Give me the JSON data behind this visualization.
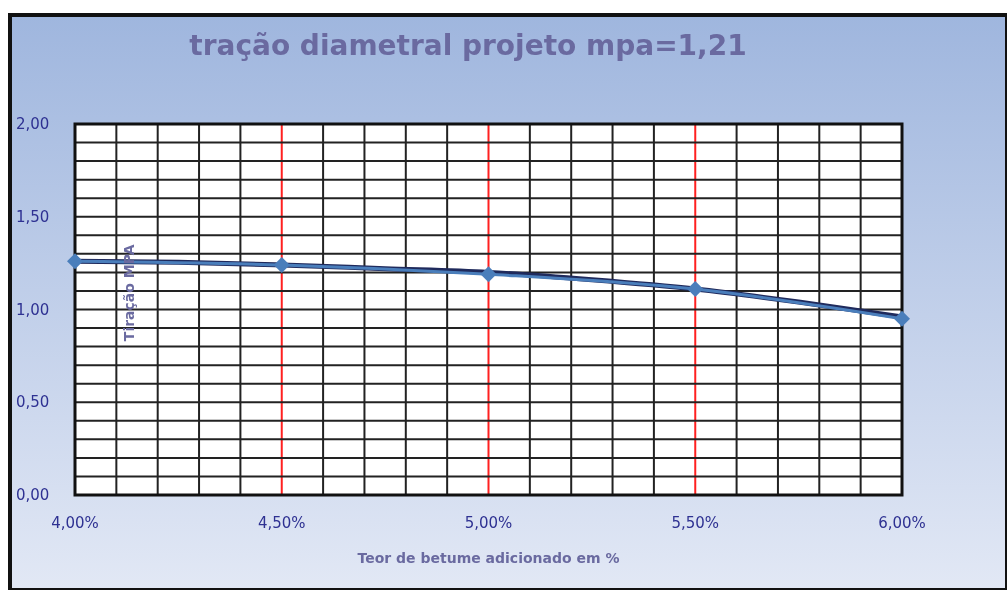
{
  "chart_data": {
    "type": "line",
    "title": "tração diametral projeto  mpa=1,21",
    "xlabel": "Teor de betume adicionado em %",
    "ylabel": "Tiração MPA",
    "xlim": [
      4,
      6
    ],
    "ylim": [
      0,
      2
    ],
    "xticks": [
      {
        "value": 4,
        "label": "4,00%"
      },
      {
        "value": 4.1,
        "label": null
      },
      {
        "value": 4.2,
        "label": null
      },
      {
        "value": 4.3,
        "label": null
      },
      {
        "value": 4.4,
        "label": null
      },
      {
        "value": 4.5,
        "label": "4,50%"
      },
      {
        "value": 4.6,
        "label": null
      },
      {
        "value": 4.7,
        "label": null
      },
      {
        "value": 4.8,
        "label": null
      },
      {
        "value": 4.9,
        "label": null
      },
      {
        "value": 5,
        "label": "5,00%"
      },
      {
        "value": 5.1,
        "label": null
      },
      {
        "value": 5.2,
        "label": null
      },
      {
        "value": 5.3,
        "label": null
      },
      {
        "value": 5.4,
        "label": null
      },
      {
        "value": 5.5,
        "label": "5,50%"
      },
      {
        "value": 5.6,
        "label": null
      },
      {
        "value": 5.7,
        "label": null
      },
      {
        "value": 5.8,
        "label": null
      },
      {
        "value": 5.9,
        "label": null
      },
      {
        "value": 6,
        "label": "6,00%"
      }
    ],
    "yticks": [
      {
        "value": 0,
        "label": "0,00"
      },
      {
        "value": 0.1,
        "label": null
      },
      {
        "value": 0.2,
        "label": null
      },
      {
        "value": 0.3,
        "label": null
      },
      {
        "value": 0.4,
        "label": null
      },
      {
        "value": 0.5,
        "label": "0,50"
      },
      {
        "value": 0.6,
        "label": null
      },
      {
        "value": 0.7,
        "label": null
      },
      {
        "value": 0.8,
        "label": null
      },
      {
        "value": 0.9,
        "label": null
      },
      {
        "value": 1,
        "label": "1,00"
      },
      {
        "value": 1.1,
        "label": null
      },
      {
        "value": 1.2,
        "label": null
      },
      {
        "value": 1.3,
        "label": null
      },
      {
        "value": 1.4,
        "label": null
      },
      {
        "value": 1.5,
        "label": "1,50"
      },
      {
        "value": 1.6,
        "label": null
      },
      {
        "value": 1.7,
        "label": null
      },
      {
        "value": 1.8,
        "label": null
      },
      {
        "value": 1.9,
        "label": null
      },
      {
        "value": 2,
        "label": "2,00"
      }
    ],
    "grid": true,
    "series": [
      {
        "color": "#4a7ebb",
        "marker": "diamond",
        "x": [
          4,
          4.5,
          5,
          5.5,
          6
        ],
        "values": [
          1.26,
          1.24,
          1.19,
          1.11,
          0.95
        ]
      },
      {
        "type": "line",
        "color": "#1f2a5c",
        "marker": "none",
        "x": [
          4,
          4.25,
          4.5,
          4.75,
          5,
          5.25,
          5.5,
          5.75,
          6
        ],
        "values": [
          1.26,
          1.255,
          1.24,
          1.22,
          1.2,
          1.16,
          1.11,
          1.04,
          0.96
        ]
      }
    ]
  }
}
